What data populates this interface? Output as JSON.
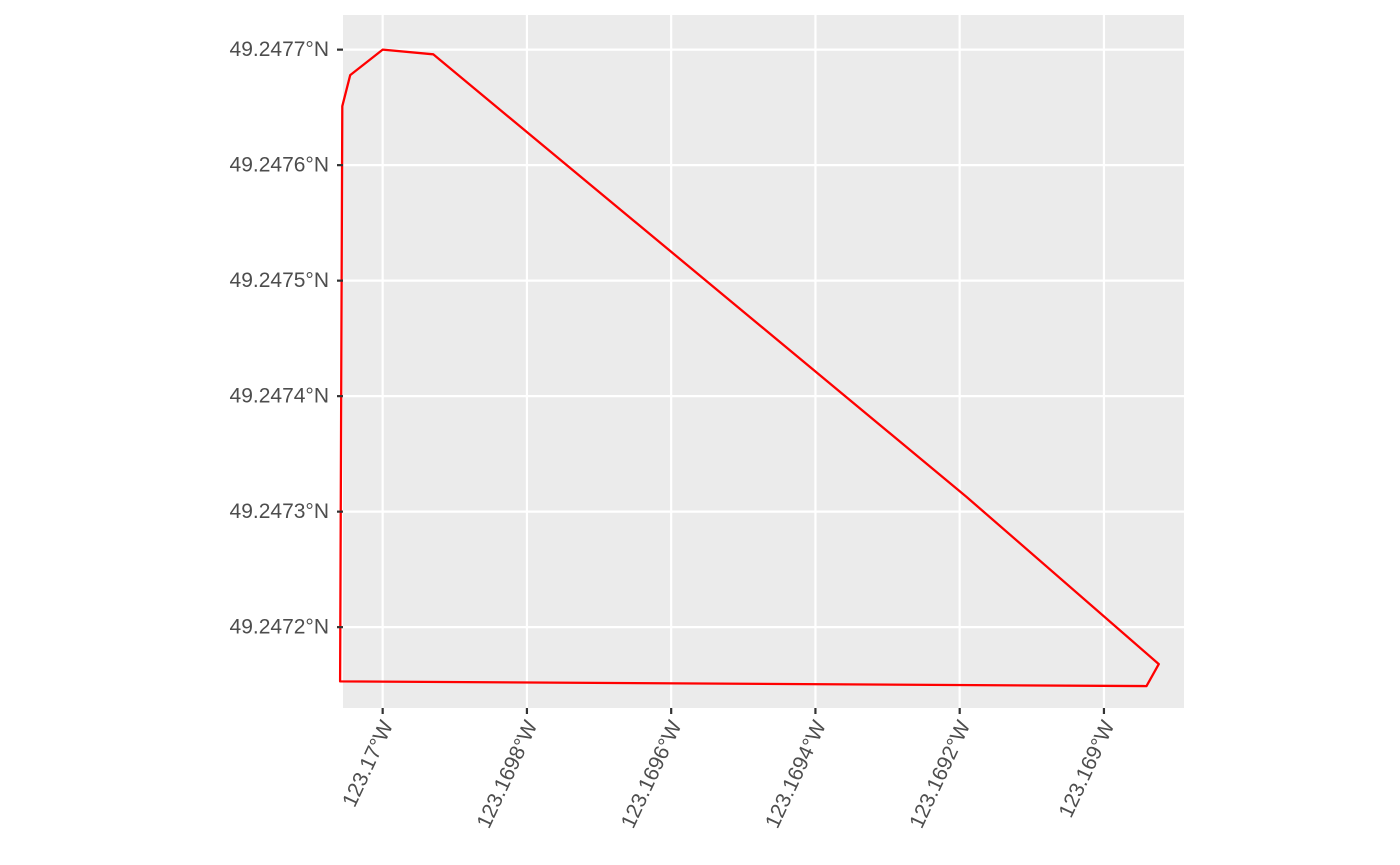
{
  "chart_data": {
    "type": "map",
    "title": "",
    "xlabel": "",
    "ylabel": "",
    "grid": true,
    "panel_background": "#EBEBEB",
    "gridline_color": "#FFFFFF",
    "outline_color": "#FF0000",
    "xlim": [
      -123.170055,
      -123.168889
    ],
    "ylim": [
      49.24713,
      49.24773
    ],
    "x_ticks": [
      {
        "value": -123.17,
        "label": "123.17°W"
      },
      {
        "value": -123.1698,
        "label": "123.1698°W"
      },
      {
        "value": -123.1696,
        "label": "123.1696°W"
      },
      {
        "value": -123.1694,
        "label": "123.1694°W"
      },
      {
        "value": -123.1692,
        "label": "123.1692°W"
      },
      {
        "value": -123.169,
        "label": "123.169°W"
      }
    ],
    "y_ticks": [
      {
        "value": 49.2477,
        "label": "49.2477°N"
      },
      {
        "value": 49.2476,
        "label": "49.2476°N"
      },
      {
        "value": 49.2475,
        "label": "49.2475°N"
      },
      {
        "value": 49.2474,
        "label": "49.2474°N"
      },
      {
        "value": 49.2473,
        "label": "49.2473°N"
      },
      {
        "value": 49.2472,
        "label": "49.2472°N"
      }
    ],
    "polygon": [
      [
        -123.17,
        49.2477
      ],
      [
        -123.16993,
        49.247696
      ],
      [
        -123.169191,
        49.247313
      ],
      [
        -123.168924,
        49.247168
      ],
      [
        -123.168941,
        49.247149
      ],
      [
        -123.170059,
        49.247153
      ],
      [
        -123.170056,
        49.247651
      ],
      [
        -123.170045,
        49.247678
      ],
      [
        -123.17,
        49.2477
      ]
    ]
  }
}
